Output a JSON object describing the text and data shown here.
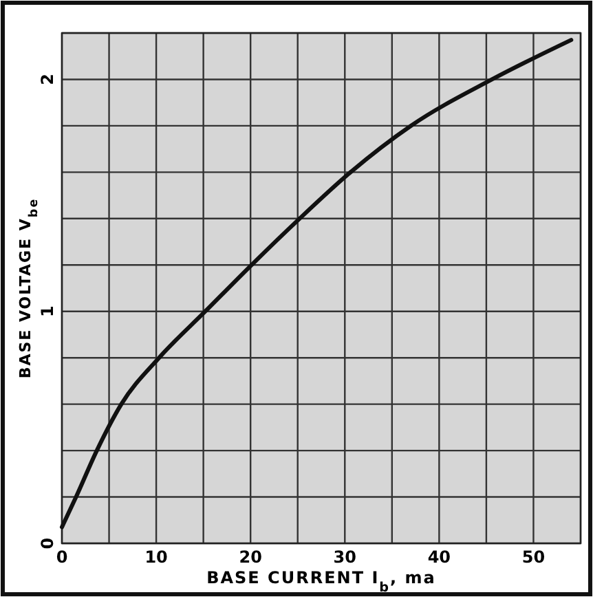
{
  "chart_data": {
    "type": "line",
    "xlabel": "BASE CURRENT I$_{b}$, ma",
    "ylabel": "BASE VOLTAGE V$_{be}$",
    "xlim": [
      0,
      55
    ],
    "ylim": [
      0,
      2.2
    ],
    "xticks": [
      0,
      {
        "value": 5,
        "label": null
      },
      10,
      {
        "value": 15,
        "label": null
      },
      20,
      {
        "value": 25,
        "label": null
      },
      30,
      {
        "value": 35,
        "label": null
      },
      40,
      {
        "value": 45,
        "label": null
      },
      50,
      {
        "value": 55,
        "label": null
      }
    ],
    "yticks": [
      0,
      {
        "value": 0.2,
        "label": null
      },
      {
        "value": 0.4,
        "label": null
      },
      {
        "value": 0.6,
        "label": null
      },
      {
        "value": 0.8,
        "label": null
      },
      1,
      {
        "value": 1.2,
        "label": null
      },
      {
        "value": 1.4,
        "label": null
      },
      {
        "value": 1.6,
        "label": null
      },
      {
        "value": 1.8,
        "label": null
      },
      2,
      {
        "value": 2.2,
        "label": null
      }
    ],
    "grid": true,
    "marker": "none",
    "line_style": "solid",
    "series": [
      {
        "color": "#111111",
        "x": [
          0,
          1.5,
          3.7,
          6.3,
          10.3,
          15.2,
          20.1,
          25.2,
          30.6,
          37,
          45.6,
          54
        ],
        "values": [
          0.07,
          0.2,
          0.4,
          0.6,
          0.8,
          1,
          1.2,
          1.4,
          1.6,
          1.8,
          2,
          2.17
        ]
      }
    ]
  }
}
